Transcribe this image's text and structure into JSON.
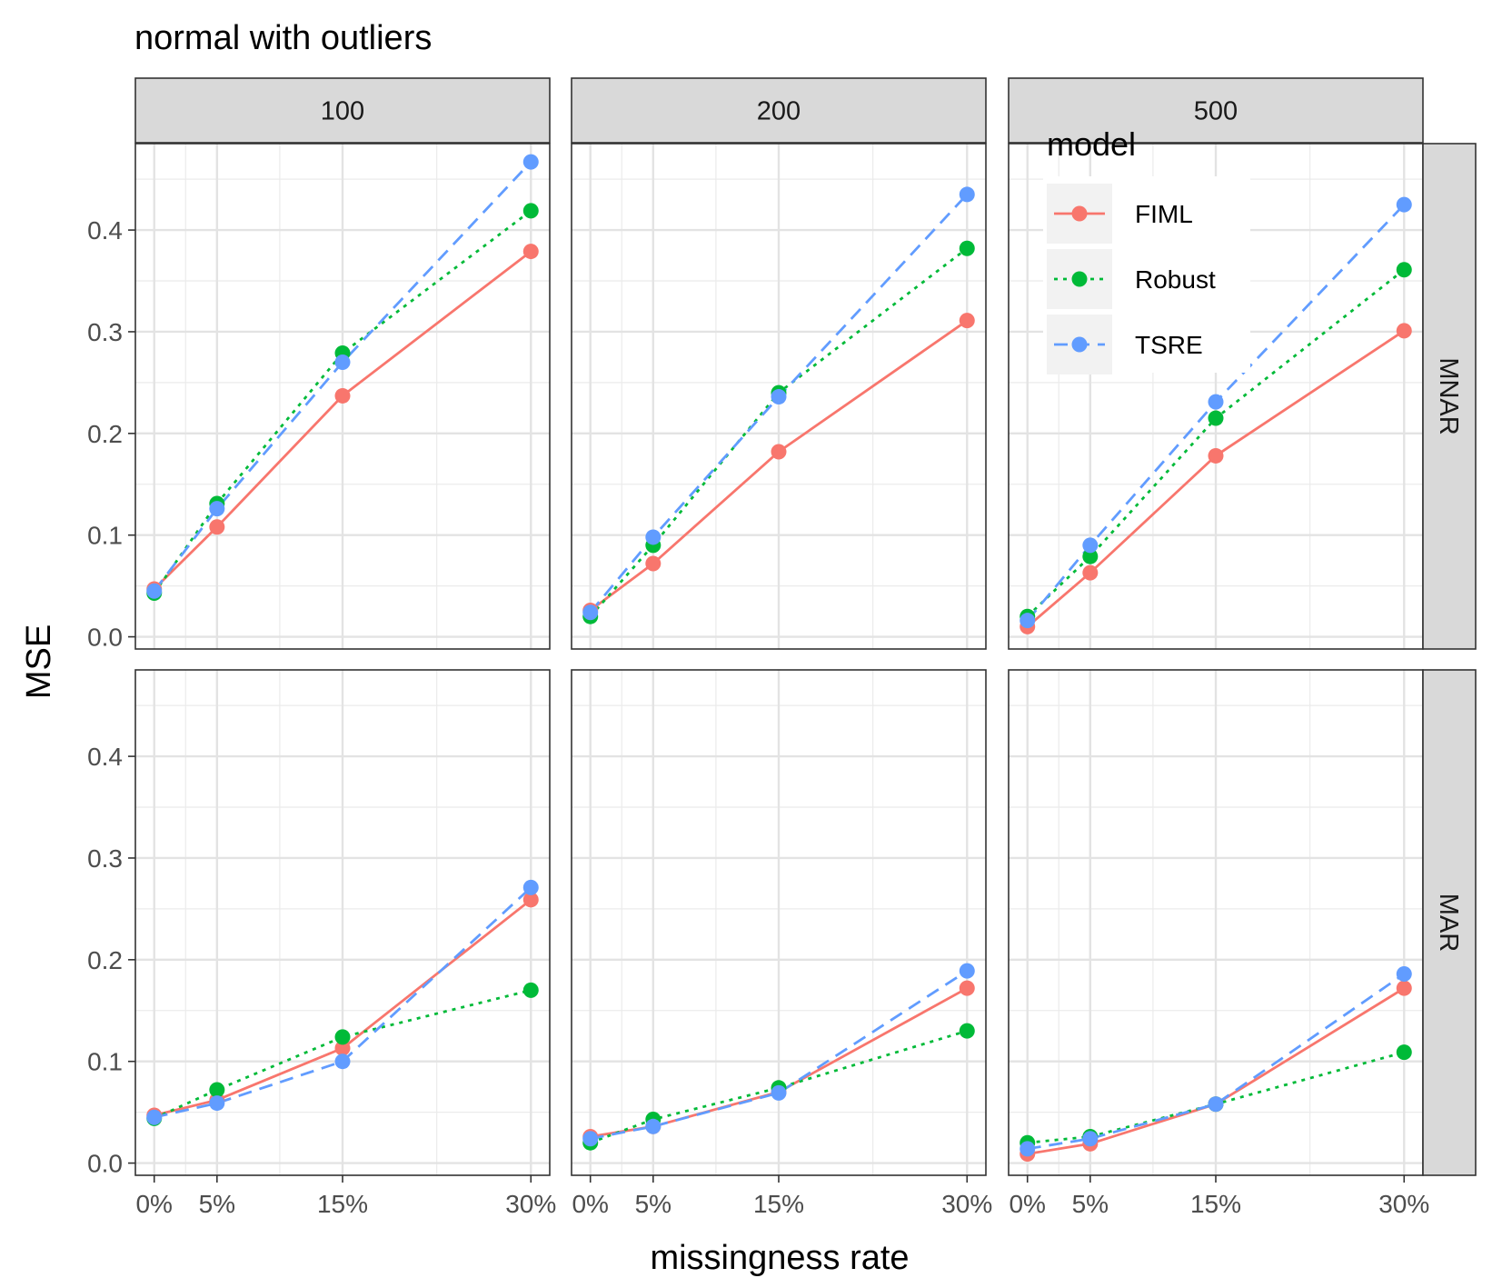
{
  "chart_data": {
    "type": "line",
    "title": "normal with outliers",
    "xlabel": "missingness rate",
    "ylabel": "MSE",
    "x": [
      0,
      5,
      15,
      30
    ],
    "x_tick_labels": [
      "0%",
      "5%",
      "15%",
      "30%"
    ],
    "ylim": [
      -0.012,
      0.485
    ],
    "y_ticks": [
      0,
      0.1,
      0.2,
      0.3,
      0.4
    ],
    "y_tick_labels": [
      "0.0",
      "0.1",
      "0.2",
      "0.3",
      "0.4"
    ],
    "grid": true,
    "column_facet_labels": [
      "100",
      "200",
      "500"
    ],
    "row_facet_labels": [
      "MNAR",
      "MAR"
    ],
    "legend": {
      "title": "model",
      "position": "top-right (inside)",
      "entries": [
        "FIML",
        "Robust",
        "TSRE"
      ]
    },
    "series_styles": {
      "FIML": {
        "color": "#F8766D",
        "dash": "solid"
      },
      "Robust": {
        "color": "#00BA38",
        "dash": "dotted"
      },
      "TSRE": {
        "color": "#619CFF",
        "dash": "dashed"
      }
    },
    "panels": [
      {
        "row": "MNAR",
        "col": "100",
        "series": [
          {
            "name": "FIML",
            "values": [
              0.047,
              0.108,
              0.237,
              0.379
            ]
          },
          {
            "name": "Robust",
            "values": [
              0.043,
              0.131,
              0.279,
              0.419
            ]
          },
          {
            "name": "TSRE",
            "values": [
              0.045,
              0.126,
              0.27,
              0.467
            ]
          }
        ]
      },
      {
        "row": "MNAR",
        "col": "200",
        "series": [
          {
            "name": "FIML",
            "values": [
              0.026,
              0.072,
              0.182,
              0.311
            ]
          },
          {
            "name": "Robust",
            "values": [
              0.02,
              0.09,
              0.24,
              0.382
            ]
          },
          {
            "name": "TSRE",
            "values": [
              0.024,
              0.098,
              0.236,
              0.435
            ]
          }
        ]
      },
      {
        "row": "MNAR",
        "col": "500",
        "series": [
          {
            "name": "FIML",
            "values": [
              0.01,
              0.063,
              0.178,
              0.301
            ]
          },
          {
            "name": "Robust",
            "values": [
              0.02,
              0.079,
              0.215,
              0.361
            ]
          },
          {
            "name": "TSRE",
            "values": [
              0.016,
              0.09,
              0.231,
              0.425
            ]
          }
        ]
      },
      {
        "row": "MAR",
        "col": "100",
        "series": [
          {
            "name": "FIML",
            "values": [
              0.047,
              0.062,
              0.113,
              0.259
            ]
          },
          {
            "name": "Robust",
            "values": [
              0.044,
              0.072,
              0.124,
              0.17
            ]
          },
          {
            "name": "TSRE",
            "values": [
              0.045,
              0.059,
              0.1,
              0.271
            ]
          }
        ]
      },
      {
        "row": "MAR",
        "col": "200",
        "series": [
          {
            "name": "FIML",
            "values": [
              0.026,
              0.036,
              0.07,
              0.172
            ]
          },
          {
            "name": "Robust",
            "values": [
              0.02,
              0.043,
              0.074,
              0.13
            ]
          },
          {
            "name": "TSRE",
            "values": [
              0.024,
              0.036,
              0.069,
              0.189
            ]
          }
        ]
      },
      {
        "row": "MAR",
        "col": "500",
        "series": [
          {
            "name": "FIML",
            "values": [
              0.009,
              0.019,
              0.058,
              0.172
            ]
          },
          {
            "name": "Robust",
            "values": [
              0.02,
              0.026,
              0.058,
              0.109
            ]
          },
          {
            "name": "TSRE",
            "values": [
              0.014,
              0.024,
              0.058,
              0.186
            ]
          }
        ]
      }
    ]
  }
}
